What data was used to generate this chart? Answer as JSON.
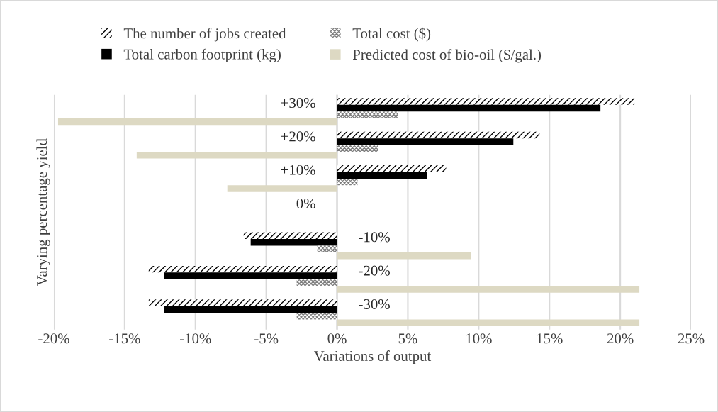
{
  "chart_data": {
    "type": "bar",
    "orientation": "horizontal",
    "xlabel": "Variations of output",
    "ylabel": "Varying percentage yield",
    "categories": [
      "+30%",
      "+20%",
      "+10%",
      "0%",
      "-10%",
      "-20%",
      "-30%"
    ],
    "series": [
      {
        "name": "The number of jobs created",
        "color": "#000000",
        "values": [
          21,
          14.3,
          7.7,
          0,
          -6.6,
          -13.3,
          -13.3
        ]
      },
      {
        "name": "Total carbon footprint (kg)",
        "color": "#000000",
        "values": [
          18.6,
          12.45,
          6.35,
          0,
          -6.1,
          -12.2,
          -12.2
        ]
      },
      {
        "name": "Total cost ($)",
        "color": "#7f7f7f",
        "values": [
          4.3,
          2.9,
          1.45,
          0,
          -1.4,
          -2.85,
          -2.85
        ]
      },
      {
        "name": "Predicted cost of bio-oil ($/gal.)",
        "color": "#ddd9c3",
        "values": [
          -19.7,
          -14.15,
          -7.75,
          0,
          9.45,
          21.35,
          21.35
        ]
      }
    ],
    "xlim": [
      -20,
      25
    ],
    "xticks": [
      {
        "value": -20,
        "label": "-20%"
      },
      {
        "value": -15,
        "label": "-15%"
      },
      {
        "value": -10,
        "label": "-10%"
      },
      {
        "value": -5,
        "label": "-5%"
      },
      {
        "value": 0,
        "label": "0%"
      },
      {
        "value": 5,
        "label": "5%"
      },
      {
        "value": 10,
        "label": "10%"
      },
      {
        "value": 15,
        "label": "15%"
      },
      {
        "value": 20,
        "label": "20%"
      },
      {
        "value": 25,
        "label": "25%"
      }
    ],
    "grid": "x",
    "legend": "top",
    "tick_labels": "x"
  }
}
